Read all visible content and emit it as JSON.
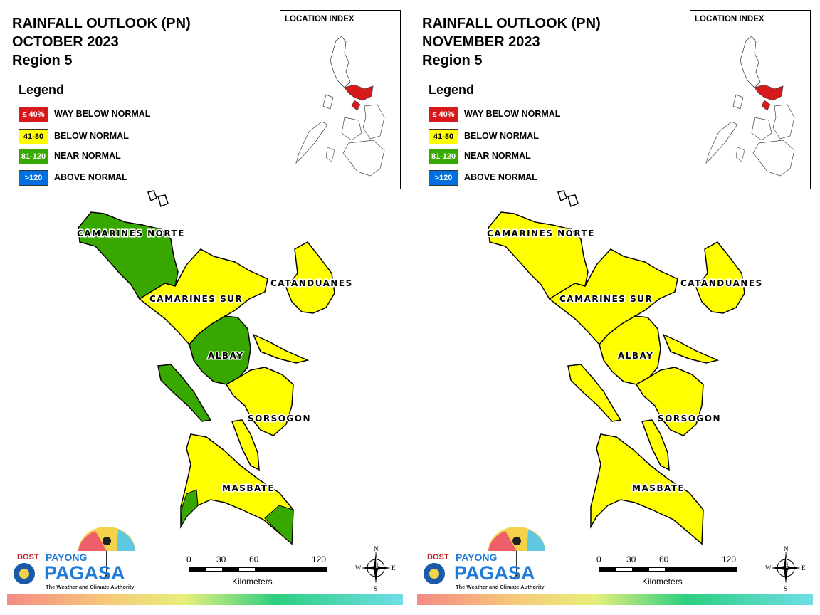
{
  "panels": [
    {
      "title_line1": "RAINFALL OUTLOOK (PN)",
      "title_line2": "OCTOBER 2023",
      "title_line3": "Region 5",
      "legend_title": "Legend",
      "legend": [
        {
          "code": "≤ 40%",
          "label": "WAY BELOW NORMAL",
          "color": "#d7191c",
          "text_color": "#ffffff"
        },
        {
          "code": "41-80",
          "label": "BELOW NORMAL",
          "color": "#ffff00",
          "text_color": "#000000"
        },
        {
          "code": "81-120",
          "label": "NEAR NORMAL",
          "color": "#38a800",
          "text_color": "#ffffff"
        },
        {
          "code": ">120",
          "label": "ABOVE NORMAL",
          "color": "#0070e0",
          "text_color": "#ffffff"
        }
      ],
      "location_index_title": "LOCATION INDEX",
      "provinces": {
        "camarines_norte": {
          "label": "CAMARINES NORTE",
          "category": "NEAR NORMAL"
        },
        "camarines_sur": {
          "label": "CAMARINES SUR",
          "category": "BELOW NORMAL"
        },
        "catanduanes": {
          "label": "CATANDUANES",
          "category": "BELOW NORMAL"
        },
        "albay": {
          "label": "ALBAY",
          "category": "NEAR NORMAL"
        },
        "sorsogon": {
          "label": "SORSOGON",
          "category": "BELOW NORMAL"
        },
        "masbate": {
          "label": "MASBATE",
          "category": "BELOW NORMAL"
        }
      },
      "scale": {
        "ticks": [
          "0",
          "30",
          "60",
          "120"
        ],
        "unit": "Kilometers"
      },
      "compass": {
        "n": "N",
        "s": "S",
        "e": "E",
        "w": "W"
      },
      "logo": {
        "dost": "DOST",
        "payong": "PAYONG",
        "pagasa": "PAGASA",
        "tagline": "The Weather and Climate Authority"
      }
    },
    {
      "title_line1": "RAINFALL OUTLOOK (PN)",
      "title_line2": "NOVEMBER 2023",
      "title_line3": "Region 5",
      "legend_title": "Legend",
      "legend": [
        {
          "code": "≤ 40%",
          "label": "WAY BELOW NORMAL",
          "color": "#d7191c",
          "text_color": "#ffffff"
        },
        {
          "code": "41-80",
          "label": "BELOW NORMAL",
          "color": "#ffff00",
          "text_color": "#000000"
        },
        {
          "code": "81-120",
          "label": "NEAR NORMAL",
          "color": "#38a800",
          "text_color": "#ffffff"
        },
        {
          "code": ">120",
          "label": "ABOVE NORMAL",
          "color": "#0070e0",
          "text_color": "#ffffff"
        }
      ],
      "location_index_title": "LOCATION INDEX",
      "provinces": {
        "camarines_norte": {
          "label": "CAMARINES NORTE",
          "category": "BELOW NORMAL"
        },
        "camarines_sur": {
          "label": "CAMARINES SUR",
          "category": "BELOW NORMAL"
        },
        "catanduanes": {
          "label": "CATANDUANES",
          "category": "BELOW NORMAL"
        },
        "albay": {
          "label": "ALBAY",
          "category": "BELOW NORMAL"
        },
        "sorsogon": {
          "label": "SORSOGON",
          "category": "BELOW NORMAL"
        },
        "masbate": {
          "label": "MASBATE",
          "category": "BELOW NORMAL"
        }
      },
      "scale": {
        "ticks": [
          "0",
          "30",
          "60",
          "120"
        ],
        "unit": "Kilometers"
      },
      "compass": {
        "n": "N",
        "s": "S",
        "e": "E",
        "w": "W"
      },
      "logo": {
        "dost": "DOST",
        "payong": "PAYONG",
        "pagasa": "PAGASA",
        "tagline": "The Weather and Climate Authority"
      }
    }
  ]
}
